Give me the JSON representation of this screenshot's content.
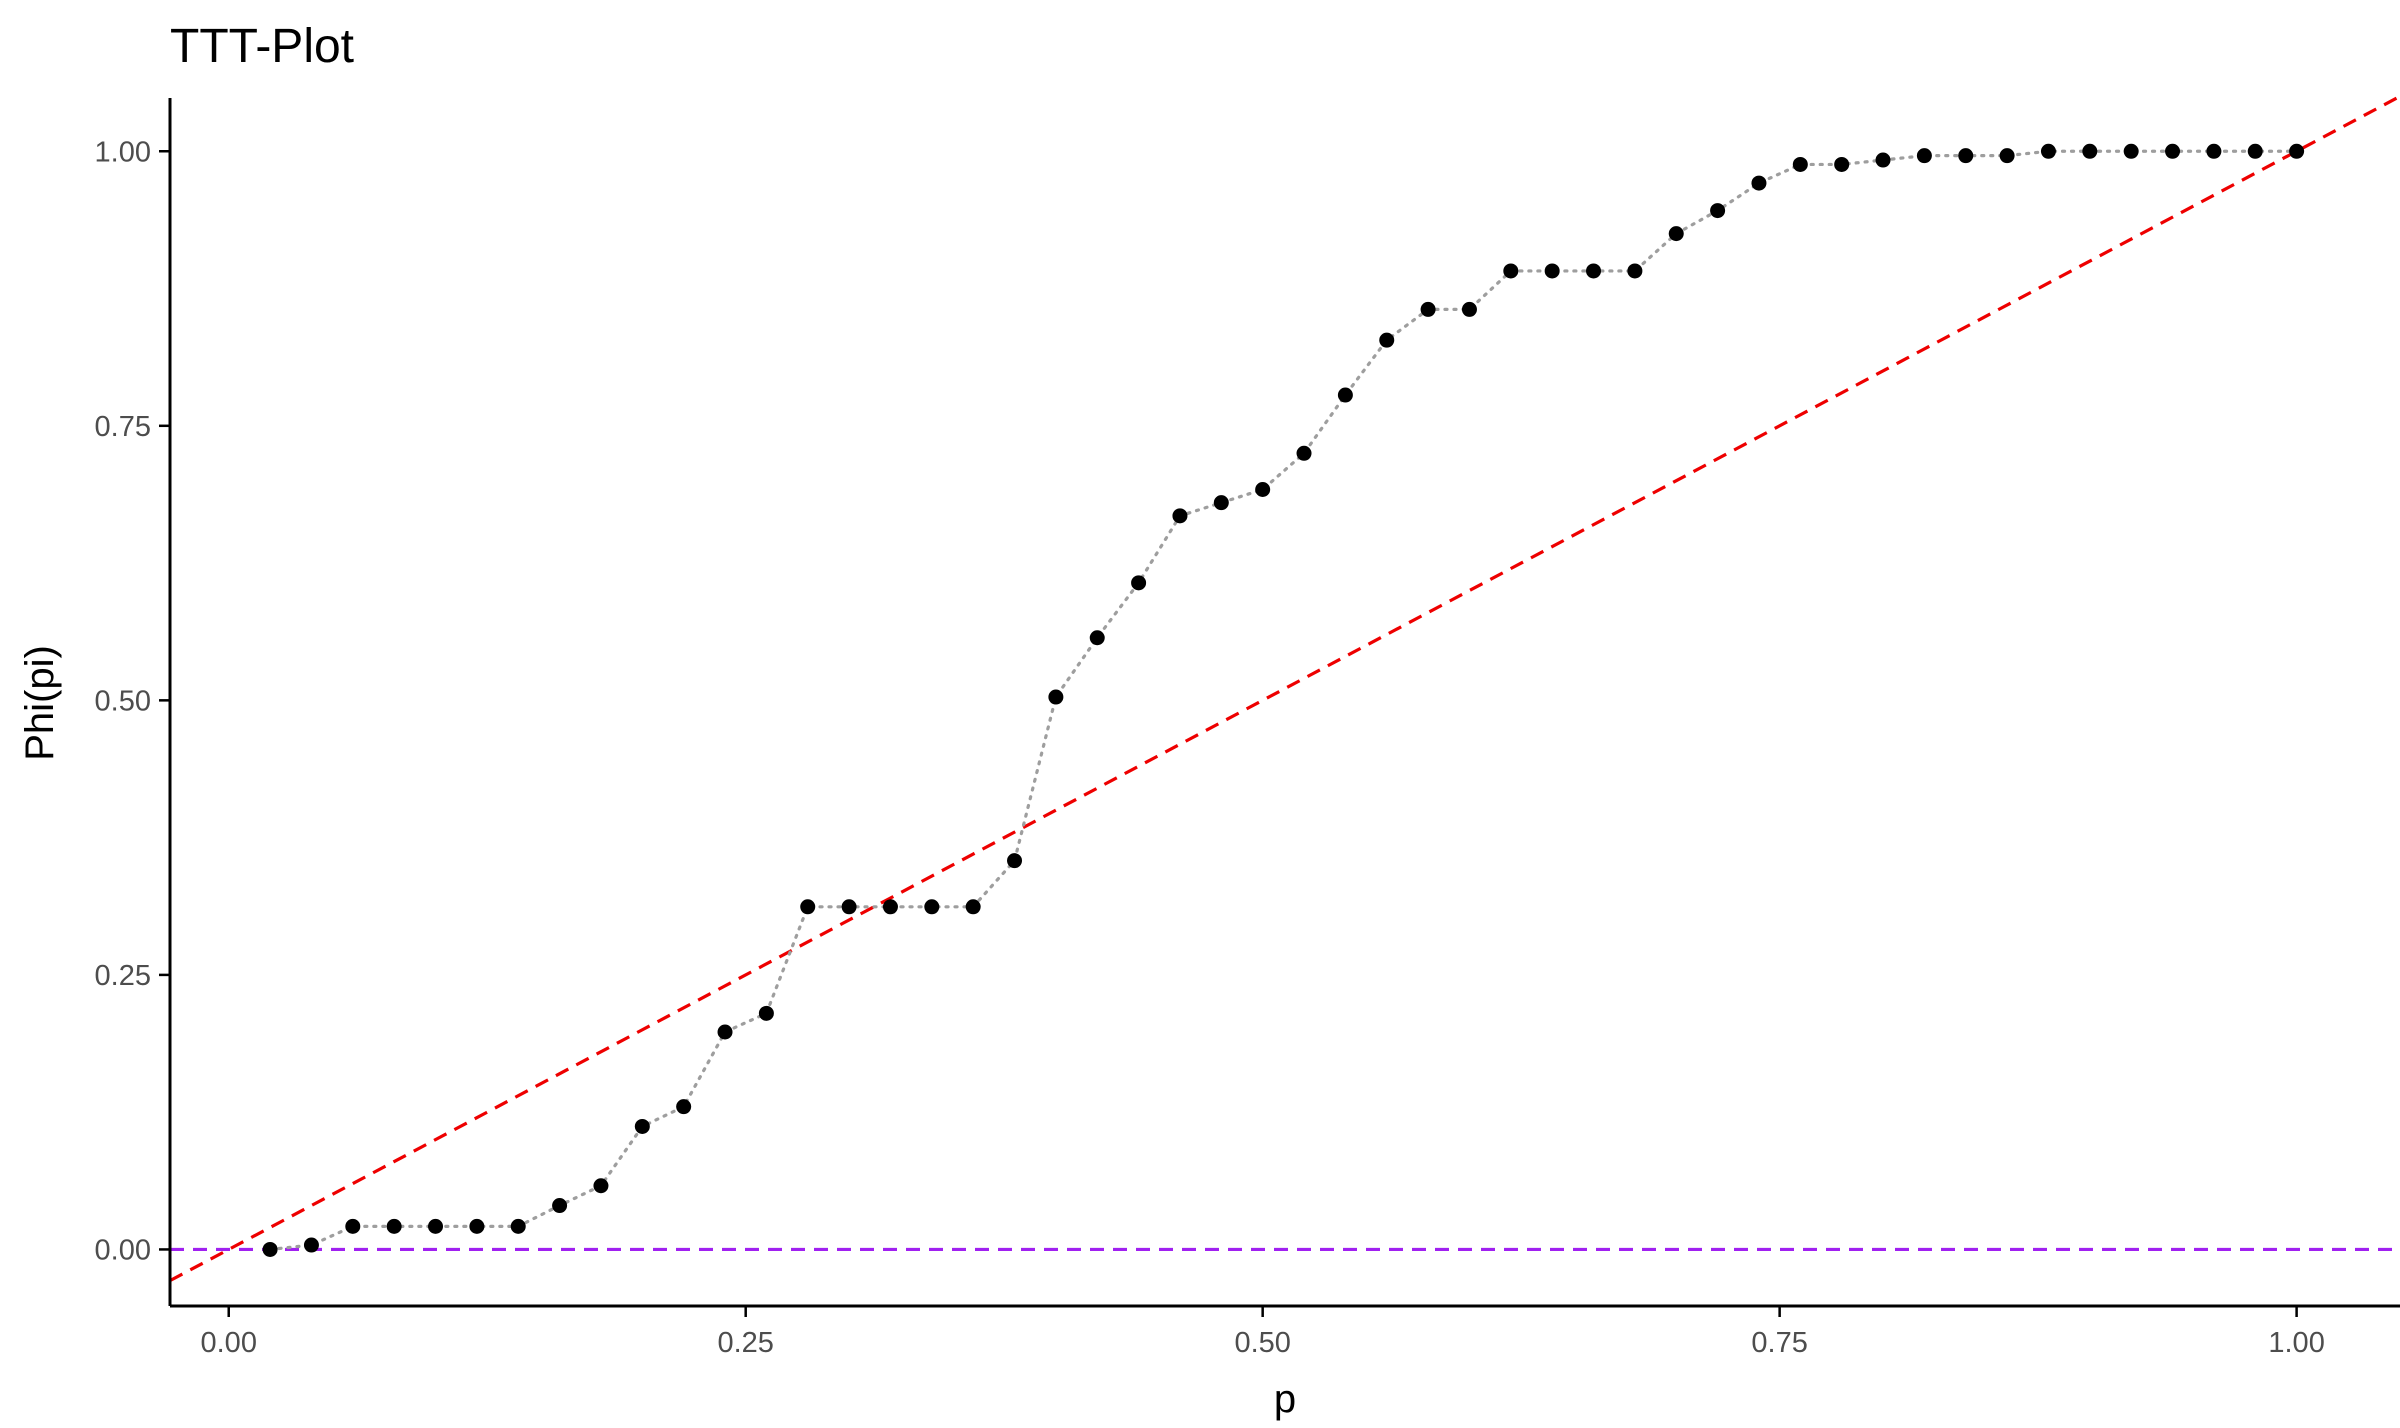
{
  "chart_data": {
    "type": "scatter",
    "title": "TTT-Plot",
    "xlabel": "p",
    "ylabel": "Phi(pi)",
    "xlim": [
      -0.0284,
      1.05
    ],
    "ylim": [
      -0.0515,
      1.0485
    ],
    "x_ticks": [
      0.0,
      0.25,
      0.5,
      0.75,
      1.0
    ],
    "x_tick_labels": [
      "0.00",
      "0.25",
      "0.50",
      "0.75",
      "1.00"
    ],
    "y_ticks": [
      0.0,
      0.25,
      0.5,
      0.75,
      1.0
    ],
    "y_tick_labels": [
      "0.00",
      "0.25",
      "0.50",
      "0.75",
      "1.00"
    ],
    "grid": false,
    "legend": "none",
    "points": {
      "x": [
        0.02,
        0.04,
        0.06,
        0.08,
        0.1,
        0.12,
        0.14,
        0.16,
        0.18,
        0.2,
        0.22,
        0.24,
        0.26,
        0.28,
        0.3,
        0.32,
        0.34,
        0.36,
        0.38,
        0.4,
        0.42,
        0.44,
        0.46,
        0.48,
        0.5,
        0.52,
        0.54,
        0.56,
        0.58,
        0.6,
        0.62,
        0.64,
        0.66,
        0.68,
        0.7,
        0.72,
        0.74,
        0.76,
        0.78,
        0.8,
        0.82,
        0.84,
        0.86,
        0.88,
        0.9,
        0.92,
        0.94,
        0.96,
        0.98,
        1.0
      ],
      "y": [
        0.0,
        0.004,
        0.021,
        0.021,
        0.021,
        0.021,
        0.021,
        0.04,
        0.058,
        0.112,
        0.13,
        0.198,
        0.215,
        0.312,
        0.312,
        0.312,
        0.312,
        0.312,
        0.354,
        0.503,
        0.557,
        0.607,
        0.668,
        0.68,
        0.692,
        0.725,
        0.778,
        0.828,
        0.856,
        0.856,
        0.891,
        0.891,
        0.891,
        0.891,
        0.925,
        0.946,
        0.971,
        0.988,
        0.988,
        0.992,
        0.996,
        0.996,
        0.996,
        1.0,
        1.0,
        1.0,
        1.0,
        1.0,
        1.0,
        1.0
      ],
      "color": "#000000"
    },
    "connector": {
      "style": "dotted",
      "color": "#9e9e9e"
    },
    "reference_lines": [
      {
        "kind": "diagonal",
        "intercept": 0,
        "slope": 1,
        "style": "dashed",
        "color": "#ee0000"
      },
      {
        "kind": "horizontal",
        "y": 0,
        "style": "dashed",
        "color": "#a020f0"
      }
    ],
    "axis_color": "#000000",
    "tick_label_color": "#4d4d4d"
  }
}
